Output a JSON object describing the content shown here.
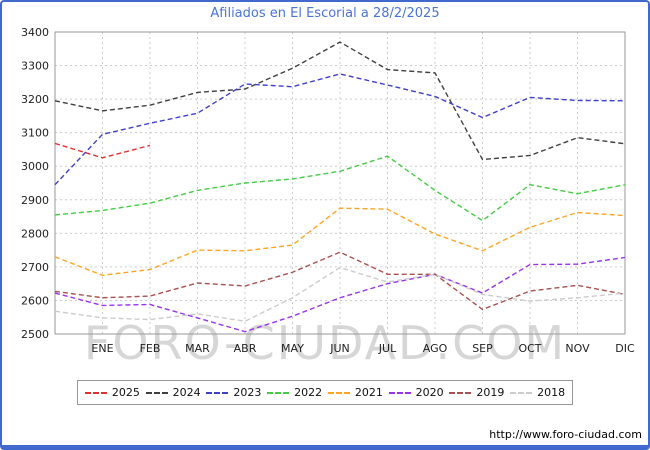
{
  "title": "Afiliados en El Escorial a 28/2/2025",
  "watermark": "FORO-CIUDAD.COM",
  "url": "http://www.foro-ciudad.com",
  "colors": {
    "frame": "#4169cd",
    "title_text": "#4a74d8",
    "grid": "#cccccc",
    "plot_border": "#999999"
  },
  "chart_data": {
    "type": "line",
    "title": "Afiliados en El Escorial a 28/2/2025",
    "categories": [
      "ENE",
      "FEB",
      "MAR",
      "ABR",
      "MAY",
      "JUN",
      "JUL",
      "AGO",
      "SEP",
      "OCT",
      "NOV",
      "DIC"
    ],
    "note": "Each series starts at the plot left edge with the previous-December value, followed by monthly values ENE..DIC",
    "ylim": [
      2500,
      3400
    ],
    "ytick_step": 100,
    "grid": true,
    "legend_position": "bottom",
    "line_style": "dashed",
    "series": [
      {
        "name": "2025",
        "color": "#e03030",
        "values": [
          3068,
          3025,
          3062
        ]
      },
      {
        "name": "2024",
        "color": "#404040",
        "values": [
          3195,
          3165,
          3182,
          3220,
          3230,
          3292,
          3370,
          3288,
          3278,
          3020,
          3032,
          3085,
          3067
        ]
      },
      {
        "name": "2023",
        "color": "#4040cc",
        "values": [
          2945,
          3095,
          3128,
          3158,
          3245,
          3237,
          3275,
          3242,
          3208,
          3145,
          3205,
          3196,
          3195
        ]
      },
      {
        "name": "2022",
        "color": "#44cc44",
        "values": [
          2855,
          2868,
          2890,
          2928,
          2950,
          2962,
          2985,
          3030,
          2928,
          2838,
          2945,
          2918,
          2945
        ]
      },
      {
        "name": "2021",
        "color": "#ffa526",
        "values": [
          2730,
          2675,
          2692,
          2750,
          2748,
          2765,
          2875,
          2872,
          2798,
          2748,
          2818,
          2862,
          2853
        ]
      },
      {
        "name": "2020",
        "color": "#9933ee",
        "values": [
          2622,
          2585,
          2588,
          2548,
          2507,
          2553,
          2608,
          2650,
          2678,
          2622,
          2707,
          2708,
          2728
        ]
      },
      {
        "name": "2019",
        "color": "#aa5050",
        "values": [
          2627,
          2608,
          2613,
          2652,
          2643,
          2684,
          2744,
          2678,
          2678,
          2573,
          2628,
          2645,
          2618
        ]
      },
      {
        "name": "2018",
        "color": "#cccccc",
        "values": [
          2568,
          2548,
          2543,
          2560,
          2538,
          2608,
          2698,
          2655,
          2678,
          2618,
          2598,
          2608,
          2622
        ]
      }
    ]
  }
}
